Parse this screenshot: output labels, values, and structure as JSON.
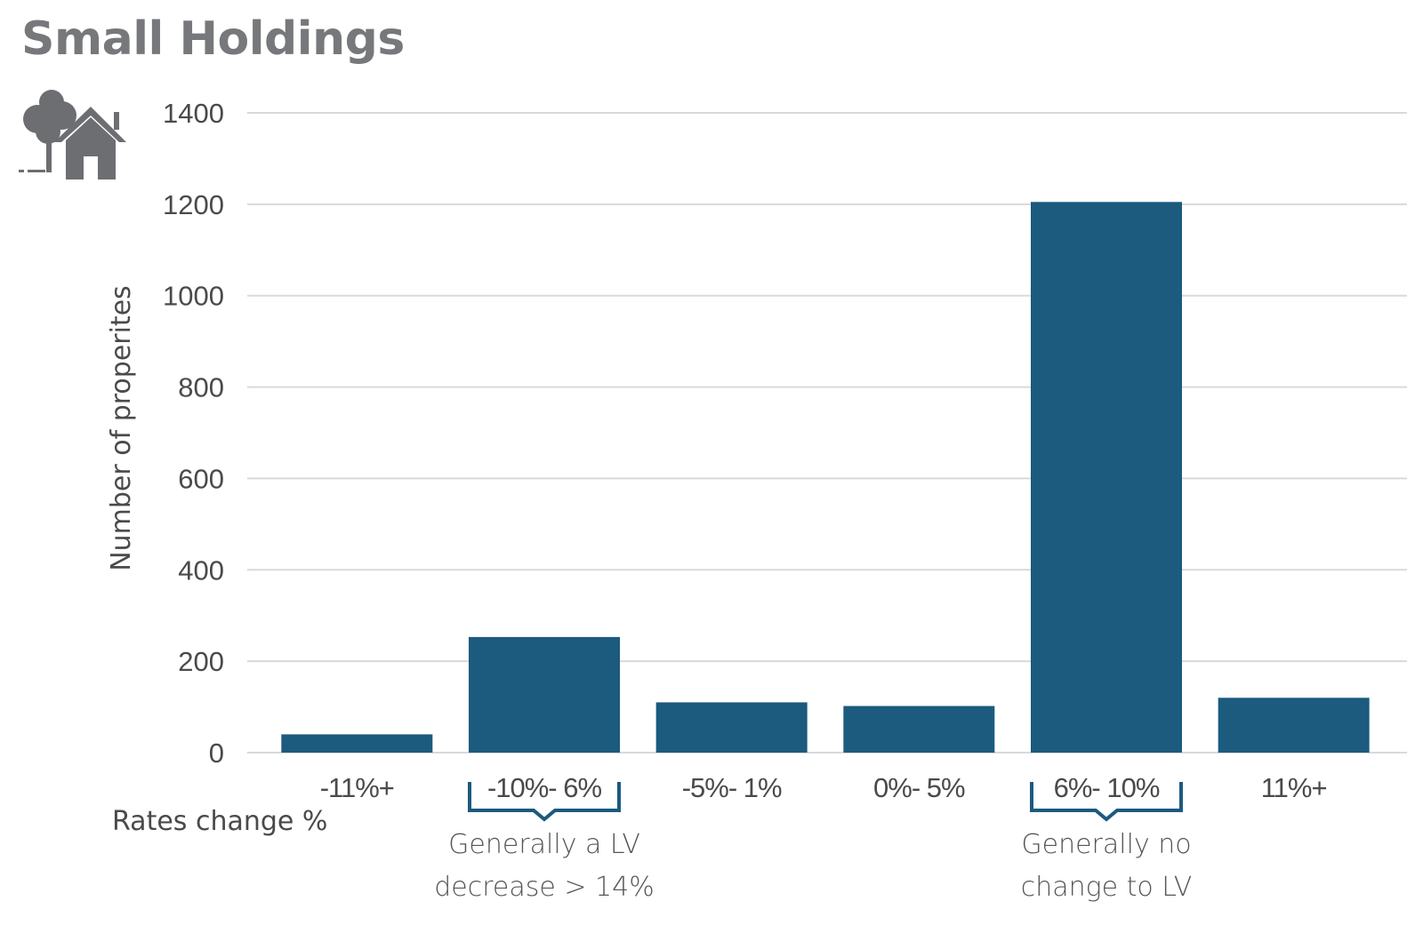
{
  "title": "Small Holdings",
  "icon": "tree-house-icon",
  "colors": {
    "bar": "#1c5a7e",
    "bracket": "#1c5a7e",
    "title": "#77787b",
    "icon": "#6d6e71",
    "grid": "#d9d9d9",
    "text": "#4a4a4a"
  },
  "chart_data": {
    "type": "bar",
    "title": "Small Holdings",
    "xlabel": "Rates change %",
    "ylabel": "Number of properites",
    "ylim": [
      0,
      1400
    ],
    "yticks": [
      0,
      200,
      400,
      600,
      800,
      1000,
      1200,
      1400
    ],
    "categories": [
      "-11%+",
      "-10%-6%",
      "-5%-1%",
      "0%-5%",
      "6%-10%",
      "11%+"
    ],
    "category_labels": [
      "-11%+",
      "-10%- 6%",
      "-5%- 1%",
      "0%- 5%",
      "6%- 10%",
      "11%+"
    ],
    "values": [
      40,
      253,
      110,
      102,
      1205,
      120
    ],
    "grid": true,
    "annotations": [
      {
        "category_index": 1,
        "lines": [
          "Generally a LV",
          "decrease > 14%"
        ]
      },
      {
        "category_index": 4,
        "lines": [
          "Generally no",
          "change to LV"
        ]
      }
    ]
  }
}
